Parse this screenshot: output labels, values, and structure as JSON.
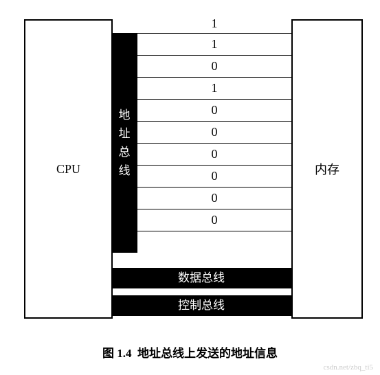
{
  "diagram": {
    "type": "block-diagram",
    "cpu_label": "CPU",
    "memory_label": "内存",
    "address_bus_label": "地址总线",
    "address_bits": [
      "1",
      "1",
      "0",
      "1",
      "0",
      "0",
      "0",
      "0",
      "0",
      "0"
    ],
    "data_bus_label": "数据总线",
    "control_bus_label": "控制总线",
    "colors": {
      "box_border": "#000000",
      "box_bg": "#ffffff",
      "bus_bg": "#000000",
      "bus_text": "#ffffff",
      "text": "#000000"
    },
    "fonts": {
      "label_size": 18,
      "bus_size": 17,
      "caption_size": 17
    }
  },
  "caption_prefix": "图 1.4",
  "caption_text": "地址总线上发送的地址信息",
  "watermark": "csdn.net/zbq_ti5"
}
